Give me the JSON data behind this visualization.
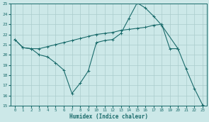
{
  "xlabel": "Humidex (Indice chaleur)",
  "bg_color": "#cce8e8",
  "grid_color": "#aacccc",
  "line_color": "#1a6b6b",
  "xlim": [
    -0.5,
    23.5
  ],
  "ylim": [
    15,
    25
  ],
  "xticks": [
    0,
    1,
    2,
    3,
    4,
    5,
    6,
    7,
    8,
    9,
    10,
    11,
    12,
    13,
    14,
    15,
    16,
    17,
    18,
    19,
    20,
    21,
    22,
    23
  ],
  "yticks": [
    15,
    16,
    17,
    18,
    19,
    20,
    21,
    22,
    23,
    24,
    25
  ],
  "line1_x": [
    0,
    1,
    2,
    3,
    4,
    5,
    6,
    7,
    8,
    9,
    10,
    11,
    12,
    13,
    14,
    15,
    16,
    17,
    18,
    19,
    20
  ],
  "line1_y": [
    21.5,
    20.7,
    20.6,
    20.6,
    20.8,
    21.0,
    21.2,
    21.4,
    21.6,
    21.8,
    22.0,
    22.1,
    22.2,
    22.4,
    22.5,
    22.6,
    22.7,
    22.9,
    23.0,
    20.6,
    20.6
  ],
  "line2_x": [
    0,
    1,
    2,
    3,
    4,
    5,
    6,
    7,
    8,
    9,
    10,
    11,
    12,
    13,
    14,
    15,
    16,
    17,
    18,
    20,
    21,
    22,
    23
  ],
  "line2_y": [
    21.5,
    20.7,
    20.6,
    20.0,
    19.8,
    19.2,
    18.5,
    16.2,
    17.2,
    18.4,
    21.2,
    21.4,
    21.5,
    22.1,
    23.6,
    25.1,
    24.6,
    23.8,
    22.9,
    20.6,
    18.6,
    16.7,
    15.1
  ]
}
